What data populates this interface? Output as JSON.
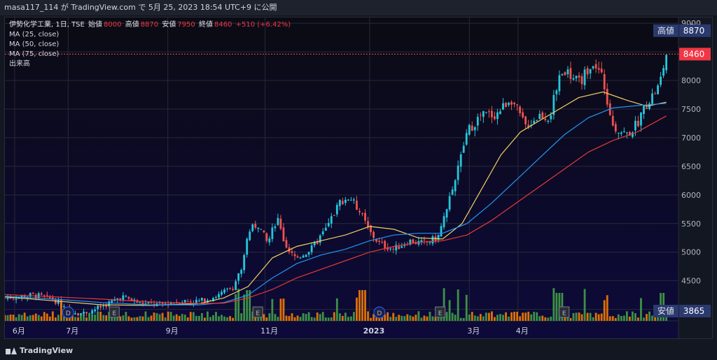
{
  "header": {
    "publish_line": "masa117_114 が TradingView.com で 5月 25, 2023 18:54 UTC+9 に公開"
  },
  "legend": {
    "symbol": "伊勢化学工業, 1日, TSE",
    "open_label": "始値",
    "open_value": "8000",
    "high_label": "高値",
    "high_value": "8870",
    "low_label": "安値",
    "low_value": "7950",
    "close_label": "終値",
    "close_value": "8460",
    "change": "+510 (+6.42%)",
    "ma25": "MA (25, close)",
    "ma50": "MA (50, close)",
    "ma75": "MA (75, close)",
    "volume": "出来高"
  },
  "footer": {
    "brand": "TradingView"
  },
  "chart_data": {
    "type": "candlestick",
    "currency": "JPY",
    "y_ticks": [
      4000,
      4500,
      5000,
      5500,
      6000,
      6500,
      7000,
      7500,
      8000,
      8500,
      9000
    ],
    "ylim": [
      3800,
      9100
    ],
    "x_tick_labels": [
      "6月",
      "7月",
      "9月",
      "11月",
      "2023",
      "3月",
      "4月"
    ],
    "markers": {
      "high": {
        "label": "高値",
        "value": 8870
      },
      "last": {
        "value": 8460
      },
      "low": {
        "label": "安値",
        "value": 3865
      }
    },
    "events": [
      {
        "label": "D",
        "month_pos": 1.3
      },
      {
        "label": "E",
        "month_pos": 2.25
      },
      {
        "label": "E",
        "month_pos": 5.2
      },
      {
        "label": "D",
        "month_pos": 7.7
      },
      {
        "label": "E",
        "month_pos": 8.95
      },
      {
        "label": "E",
        "month_pos": 11.5
      }
    ],
    "price_path": [
      [
        0,
        4200
      ],
      [
        0.6,
        4250
      ],
      [
        1.0,
        4180
      ],
      [
        1.3,
        3980
      ],
      [
        1.6,
        3930
      ],
      [
        2.0,
        4050
      ],
      [
        2.4,
        4230
      ],
      [
        2.8,
        4100
      ],
      [
        3.2,
        4080
      ],
      [
        3.6,
        4150
      ],
      [
        4.0,
        4140
      ],
      [
        4.4,
        4250
      ],
      [
        4.7,
        4400
      ],
      [
        4.9,
        4800
      ],
      [
        5.0,
        5350
      ],
      [
        5.2,
        5500
      ],
      [
        5.4,
        5150
      ],
      [
        5.6,
        5600
      ],
      [
        5.8,
        5000
      ],
      [
        6.0,
        4900
      ],
      [
        6.3,
        5050
      ],
      [
        6.6,
        5400
      ],
      [
        6.9,
        5900
      ],
      [
        7.1,
        5950
      ],
      [
        7.3,
        5700
      ],
      [
        7.5,
        5350
      ],
      [
        7.7,
        5150
      ],
      [
        8.0,
        5050
      ],
      [
        8.3,
        5200
      ],
      [
        8.6,
        5150
      ],
      [
        8.9,
        5250
      ],
      [
        9.1,
        5800
      ],
      [
        9.3,
        6400
      ],
      [
        9.5,
        7100
      ],
      [
        9.8,
        7400
      ],
      [
        10.1,
        7400
      ],
      [
        10.4,
        7700
      ],
      [
        10.7,
        7200
      ],
      [
        11.0,
        7400
      ],
      [
        11.2,
        7350
      ],
      [
        11.35,
        7900
      ],
      [
        11.5,
        8200
      ],
      [
        11.8,
        7950
      ],
      [
        12.1,
        8350
      ],
      [
        12.3,
        8000
      ],
      [
        12.5,
        7200
      ],
      [
        12.8,
        7050
      ],
      [
        13.0,
        7250
      ],
      [
        13.2,
        7600
      ],
      [
        13.45,
        7900
      ],
      [
        13.6,
        8460
      ]
    ],
    "ma25": [
      [
        0,
        4220
      ],
      [
        1,
        4150
      ],
      [
        2,
        4080
      ],
      [
        3,
        4070
      ],
      [
        4,
        4100
      ],
      [
        4.5,
        4200
      ],
      [
        5,
        4400
      ],
      [
        5.5,
        4900
      ],
      [
        6,
        5100
      ],
      [
        6.5,
        5200
      ],
      [
        7,
        5300
      ],
      [
        7.5,
        5450
      ],
      [
        8,
        5400
      ],
      [
        8.5,
        5250
      ],
      [
        9,
        5230
      ],
      [
        9.4,
        5500
      ],
      [
        9.8,
        6100
      ],
      [
        10.2,
        6700
      ],
      [
        10.6,
        7100
      ],
      [
        11,
        7300
      ],
      [
        11.4,
        7500
      ],
      [
        11.8,
        7700
      ],
      [
        12.3,
        7800
      ],
      [
        12.8,
        7650
      ],
      [
        13.2,
        7550
      ],
      [
        13.6,
        7620
      ]
    ],
    "ma50": [
      [
        0,
        4230
      ],
      [
        1,
        4180
      ],
      [
        2,
        4120
      ],
      [
        3,
        4080
      ],
      [
        4,
        4080
      ],
      [
        4.5,
        4120
      ],
      [
        5,
        4250
      ],
      [
        5.5,
        4550
      ],
      [
        6,
        4800
      ],
      [
        6.5,
        4950
      ],
      [
        7,
        5050
      ],
      [
        7.5,
        5200
      ],
      [
        8,
        5300
      ],
      [
        8.5,
        5330
      ],
      [
        9,
        5330
      ],
      [
        9.5,
        5500
      ],
      [
        10,
        5850
      ],
      [
        10.5,
        6250
      ],
      [
        11,
        6650
      ],
      [
        11.5,
        7050
      ],
      [
        12,
        7350
      ],
      [
        12.5,
        7520
      ],
      [
        13,
        7560
      ],
      [
        13.6,
        7600
      ]
    ],
    "ma75": [
      [
        0,
        4260
      ],
      [
        1,
        4220
      ],
      [
        2,
        4180
      ],
      [
        3,
        4130
      ],
      [
        4,
        4100
      ],
      [
        4.5,
        4110
      ],
      [
        5,
        4200
      ],
      [
        5.5,
        4350
      ],
      [
        6,
        4550
      ],
      [
        6.5,
        4700
      ],
      [
        7,
        4850
      ],
      [
        7.5,
        5000
      ],
      [
        8,
        5100
      ],
      [
        8.5,
        5170
      ],
      [
        9,
        5200
      ],
      [
        9.5,
        5300
      ],
      [
        10,
        5550
      ],
      [
        10.5,
        5850
      ],
      [
        11,
        6150
      ],
      [
        11.5,
        6450
      ],
      [
        12,
        6750
      ],
      [
        12.5,
        6950
      ],
      [
        13,
        7100
      ],
      [
        13.6,
        7380
      ]
    ]
  }
}
